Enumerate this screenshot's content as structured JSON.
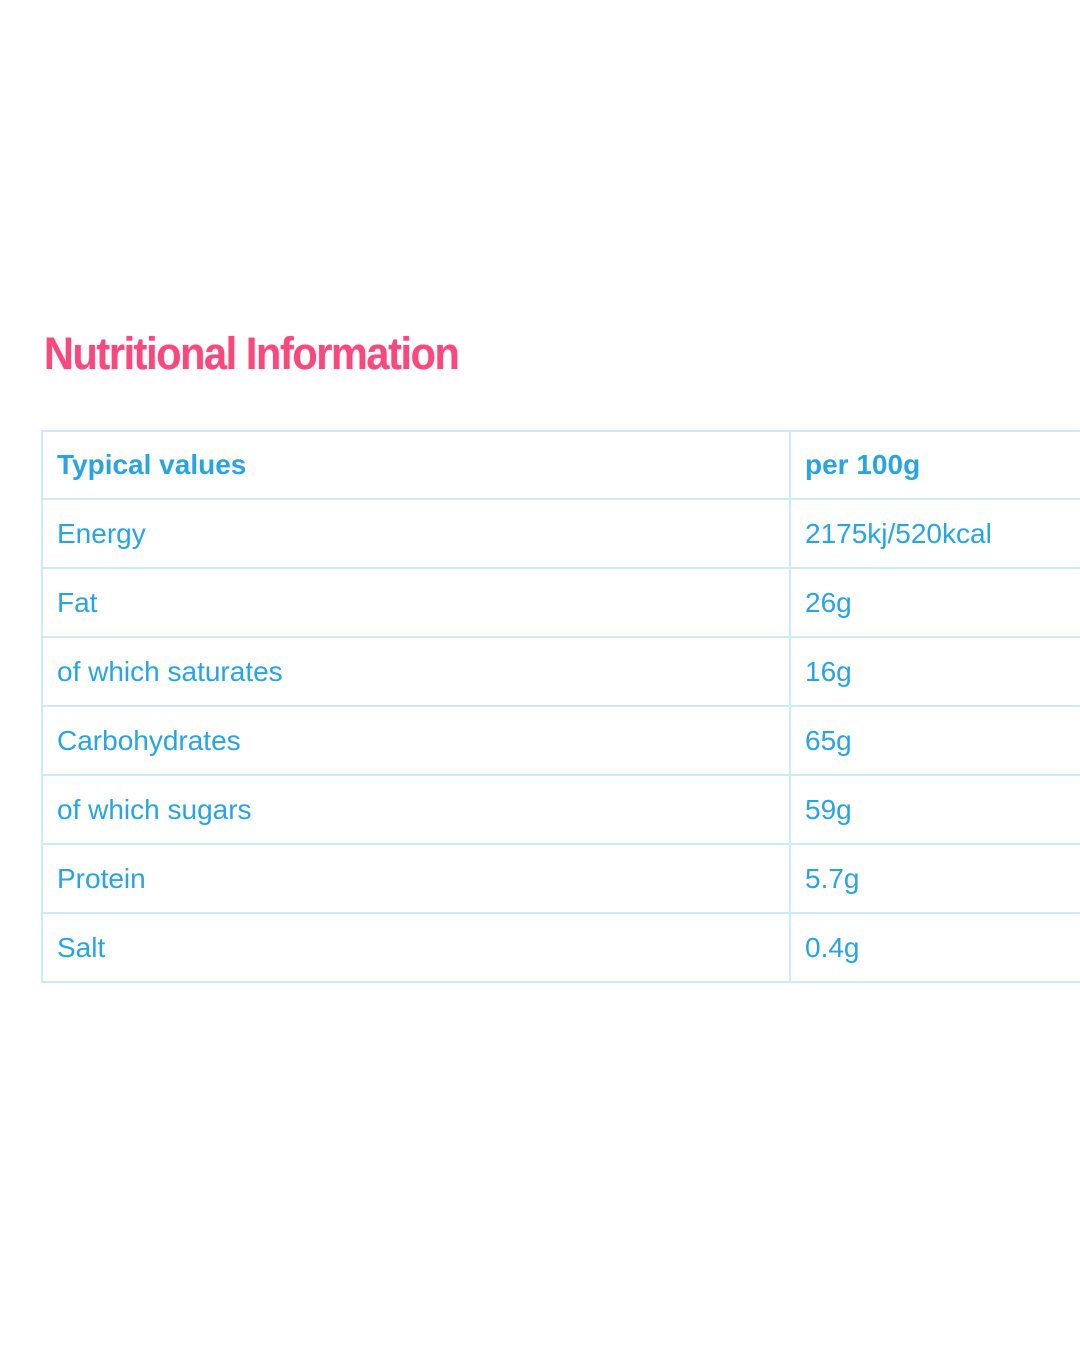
{
  "colors": {
    "heading_pink": "#f8497f",
    "table_text_blue": "#29a3e3",
    "table_border_blue": "#cdeaf8",
    "background": "#ffffff"
  },
  "section": {
    "heading": "Nutritional Information"
  },
  "table": {
    "header": {
      "label": "Typical values",
      "value": "per 100g"
    },
    "rows": [
      {
        "label": "Energy",
        "value": "2175kj/520kcal"
      },
      {
        "label": "Fat",
        "value": "26g"
      },
      {
        "label": "of which saturates",
        "value": "16g"
      },
      {
        "label": "Carbohydrates",
        "value": "65g"
      },
      {
        "label": "of which sugars",
        "value": "59g"
      },
      {
        "label": "Protein",
        "value": "5.7g"
      },
      {
        "label": "Salt",
        "value": "0.4g"
      }
    ]
  }
}
